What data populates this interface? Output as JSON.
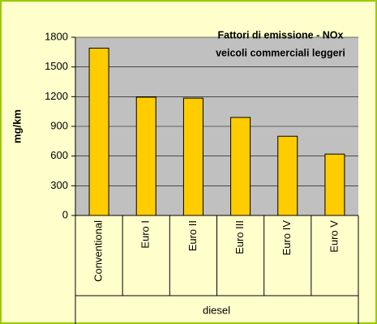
{
  "chart_data": {
    "type": "bar",
    "title": "Fattori di emissione  - NOx",
    "subtitle": "veicoli commerciali leggeri",
    "ylabel": "mg/km",
    "group_label": "diesel",
    "categories": [
      "Conventional",
      "Euro I",
      "Euro II",
      "Euro III",
      "Euro IV",
      "Euro V"
    ],
    "values": [
      1690,
      1195,
      1185,
      990,
      800,
      620
    ],
    "color": "#ffcc00",
    "ylim": [
      0,
      1800
    ],
    "yticks": [
      0,
      300,
      600,
      900,
      1200,
      1500,
      1800
    ],
    "grid": true
  }
}
